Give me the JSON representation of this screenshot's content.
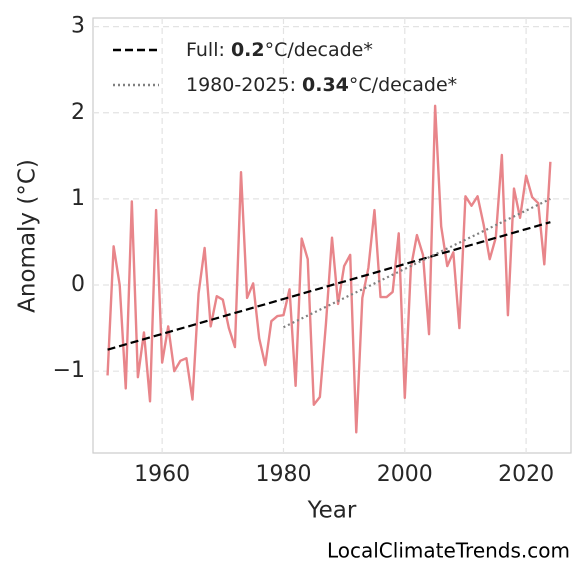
{
  "chart_data": {
    "type": "line",
    "xlabel": "Year",
    "ylabel": "Anomaly (°C)",
    "x": [
      1951,
      1952,
      1953,
      1954,
      1955,
      1956,
      1957,
      1958,
      1959,
      1960,
      1961,
      1962,
      1963,
      1964,
      1965,
      1966,
      1967,
      1968,
      1969,
      1970,
      1971,
      1972,
      1973,
      1974,
      1975,
      1976,
      1977,
      1978,
      1979,
      1980,
      1981,
      1982,
      1983,
      1984,
      1985,
      1986,
      1987,
      1988,
      1989,
      1990,
      1991,
      1992,
      1993,
      1994,
      1995,
      1996,
      1997,
      1998,
      1999,
      2000,
      2001,
      2002,
      2003,
      2004,
      2005,
      2006,
      2007,
      2008,
      2009,
      2010,
      2011,
      2012,
      2013,
      2014,
      2015,
      2016,
      2017,
      2018,
      2019,
      2020,
      2021,
      2022,
      2023,
      2024
    ],
    "series": [
      {
        "color": "#e8858a",
        "values": [
          -1.05,
          0.45,
          0.0,
          -1.2,
          0.97,
          -1.07,
          -0.55,
          -1.35,
          0.87,
          -0.9,
          -0.48,
          -1.0,
          -0.88,
          -0.85,
          -1.33,
          -0.1,
          0.43,
          -0.48,
          -0.13,
          -0.17,
          -0.5,
          -0.72,
          1.31,
          -0.15,
          0.02,
          -0.62,
          -0.93,
          -0.42,
          -0.36,
          -0.35,
          -0.05,
          -1.17,
          0.54,
          0.3,
          -1.39,
          -1.3,
          -0.45,
          0.55,
          -0.22,
          0.22,
          0.35,
          -1.71,
          -0.15,
          0.2,
          0.87,
          -0.14,
          -0.14,
          -0.08,
          0.6,
          -1.31,
          0.2,
          0.58,
          0.35,
          -0.57,
          2.08,
          0.68,
          0.22,
          0.38,
          -0.5,
          1.03,
          0.92,
          1.03,
          0.7,
          0.3,
          0.55,
          1.51,
          -0.35,
          1.12,
          0.78,
          1.27,
          1.02,
          0.95,
          0.24,
          1.43
        ]
      },
      {
        "color": "#000000",
        "dash": "dashed",
        "x": [
          1951,
          2024
        ],
        "values": [
          -0.75,
          0.73
        ],
        "legend_parts": [
          "Full: ",
          "0.2",
          "°C/decade*"
        ]
      },
      {
        "color": "#808080",
        "dash": "dotted",
        "x": [
          1980,
          2024
        ],
        "values": [
          -0.49,
          1.0
        ],
        "legend_parts": [
          "1980-2025: ",
          "0.34",
          "°C/decade*"
        ]
      }
    ],
    "legend_loc": "upper left",
    "xlim": [
      1948.6,
      2027.4
    ],
    "ylim": [
      -1.95,
      3.1
    ],
    "xticks": [
      1960,
      1980,
      2000,
      2020
    ],
    "yticks": [
      {
        "value": -1,
        "label": "−1"
      },
      0,
      1,
      2,
      3
    ],
    "grid": true,
    "watermark": "LocalClimateTrends.com"
  }
}
